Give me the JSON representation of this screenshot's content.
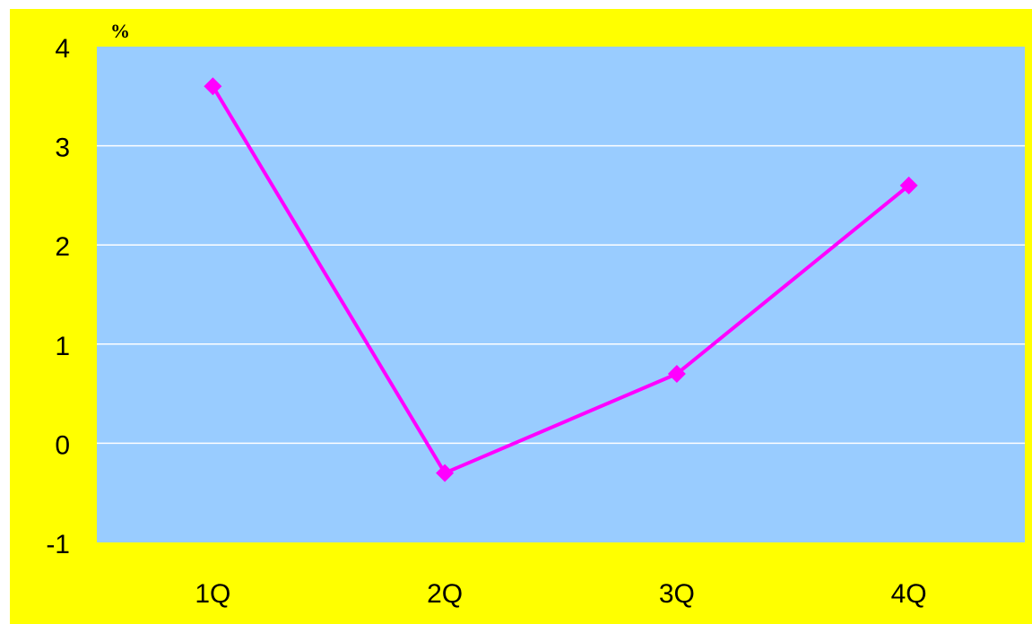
{
  "chart_data": {
    "type": "line",
    "title": "",
    "ylabel": "%",
    "xlabel": "",
    "categories": [
      "1Q",
      "2Q",
      "3Q",
      "4Q"
    ],
    "series": [
      {
        "values": [
          3.6,
          -0.3,
          0.7,
          2.6
        ],
        "color": "#ff00ff",
        "marker": "diamond"
      }
    ],
    "ylim": [
      -1,
      4
    ],
    "yticks": [
      "4",
      "3",
      "2",
      "1",
      "0",
      "-1"
    ],
    "grid": true,
    "legend": "none"
  },
  "colors": {
    "frame": "#ffff00",
    "plot_area": "#99ccff",
    "grid": "#ffffff",
    "series": "#ff00ff",
    "text": "#000000"
  }
}
